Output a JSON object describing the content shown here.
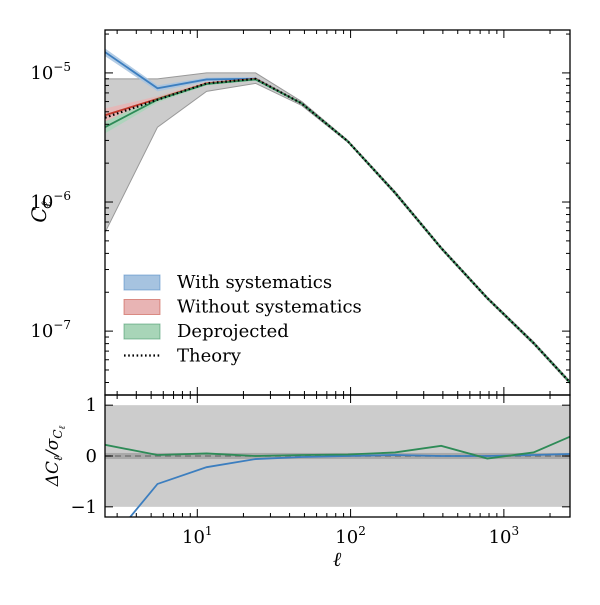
{
  "chart_data": [
    {
      "type": "line",
      "xscale": "log",
      "yscale": "log",
      "xlim": [
        2.5,
        2700
      ],
      "ylim": [
        3.2e-08,
        2.15e-05
      ],
      "xlabel": "ℓ",
      "ylabel": "Cℓ",
      "yticks": [
        {
          "value": 1e-07,
          "base": "10",
          "exp": "−7"
        },
        {
          "value": 1e-06,
          "base": "10",
          "exp": "−6"
        },
        {
          "value": 1e-05,
          "base": "10",
          "exp": "−5"
        }
      ],
      "legend_position": "lower-left",
      "x": [
        2.5,
        5.5,
        11.5,
        24,
        48,
        96,
        195,
        390,
        780,
        1560,
        2700
      ],
      "series": [
        {
          "name": "With systematics",
          "color": "#3c7ebf",
          "band_color": "#a6c3e0",
          "values": [
            1.45e-05,
            7.6e-06,
            8.9e-06,
            9e-06,
            5.8e-06,
            2.95e-06,
            1.18e-06,
            4.4e-07,
            1.8e-07,
            8.1e-08,
            4e-08
          ],
          "lower": [
            1.35e-05,
            7.2e-06,
            8.6e-06,
            8.7e-06,
            5.7e-06,
            2.9e-06,
            1.16e-06,
            4.3e-07,
            1.77e-07,
            7.9e-08,
            3.9e-08
          ],
          "upper": [
            1.55e-05,
            8e-06,
            9.2e-06,
            9.3e-06,
            5.9e-06,
            3e-06,
            1.2e-06,
            4.5e-07,
            1.83e-07,
            8.3e-08,
            4.1e-08
          ]
        },
        {
          "name": "Without systematics",
          "color": "#c0392b",
          "band_color": "#e8b4b4",
          "values": [
            4.7e-06,
            6.3e-06,
            8.3e-06,
            9e-06,
            5.8e-06,
            2.95e-06,
            1.18e-06,
            4.4e-07,
            1.8e-07,
            8.1e-08,
            4e-08
          ],
          "lower": [
            4.2e-06,
            6e-06,
            8.1e-06,
            8.8e-06,
            5.7e-06,
            2.9e-06,
            1.16e-06,
            4.3e-07,
            1.77e-07,
            7.9e-08,
            3.9e-08
          ],
          "upper": [
            5.3e-06,
            6.6e-06,
            8.5e-06,
            9.2e-06,
            5.9e-06,
            3e-06,
            1.2e-06,
            4.5e-07,
            1.83e-07,
            8.3e-08,
            4.1e-08
          ]
        },
        {
          "name": "Deprojected",
          "color": "#2e8b57",
          "band_color": "#a8d5b8",
          "values": [
            3.8e-06,
            6.2e-06,
            8.2e-06,
            8.9e-06,
            5.8e-06,
            2.95e-06,
            1.18e-06,
            4.4e-07,
            1.8e-07,
            8.1e-08,
            4e-08
          ],
          "lower": [
            3.4e-06,
            5.9e-06,
            8e-06,
            8.7e-06,
            5.7e-06,
            2.9e-06,
            1.16e-06,
            4.3e-07,
            1.77e-07,
            7.9e-08,
            3.9e-08
          ],
          "upper": [
            4.2e-06,
            6.5e-06,
            8.4e-06,
            9.1e-06,
            5.9e-06,
            3e-06,
            1.2e-06,
            4.5e-07,
            1.83e-07,
            8.3e-08,
            4.1e-08
          ]
        },
        {
          "name": "Theory",
          "color": "#000000",
          "dash": "dotted",
          "values": [
            4.5e-06,
            6.2e-06,
            8.3e-06,
            9e-06,
            5.8e-06,
            2.95e-06,
            1.18e-06,
            4.4e-07,
            1.8e-07,
            8.1e-08,
            4e-08
          ]
        }
      ],
      "error_band": {
        "color": "#cccccc",
        "lower": [
          5.8e-07,
          3.8e-06,
          7.2e-06,
          8.3e-06,
          5.6e-06,
          2.9e-06,
          1.15e-06,
          4.3e-07,
          1.76e-07,
          7.9e-08,
          3.9e-08
        ],
        "upper": [
          9e-06,
          9e-06,
          1e-05,
          1e-05,
          6e-06,
          3e-06,
          1.21e-06,
          4.5e-07,
          1.84e-07,
          8.3e-08,
          4.1e-08
        ]
      }
    },
    {
      "type": "line",
      "xscale": "log",
      "xlim": [
        2.5,
        2700
      ],
      "ylim": [
        -1.2,
        1.2
      ],
      "xlabel": "ℓ",
      "ylabel": "ΔCℓ/σCℓ",
      "xticks": [
        {
          "value": 10,
          "base": "10",
          "exp": "1"
        },
        {
          "value": 100,
          "base": "10",
          "exp": "2"
        },
        {
          "value": 1000,
          "base": "10",
          "exp": "3"
        }
      ],
      "yticks": [
        {
          "value": -1,
          "label": "−1"
        },
        {
          "value": 0,
          "label": "0"
        },
        {
          "value": 1,
          "label": "1"
        }
      ],
      "x": [
        2.5,
        5.5,
        11.5,
        24,
        48,
        96,
        195,
        390,
        780,
        1560,
        2700
      ],
      "bands": [
        {
          "lower": -1.0,
          "upper": 1.0,
          "color": "#cccccc"
        },
        {
          "lower": -0.06,
          "upper": 0.06,
          "color": "#a9a9a9"
        }
      ],
      "reference_line": {
        "value": 0,
        "color": "#777777",
        "dash": "dashed"
      },
      "series": [
        {
          "name": "With systematics",
          "color": "#3c7ebf",
          "values": [
            -1.8,
            -0.55,
            -0.22,
            -0.06,
            -0.02,
            0.0,
            0.02,
            0.0,
            0.0,
            0.02,
            0.04
          ]
        },
        {
          "name": "Deprojected",
          "color": "#2e8b57",
          "values": [
            0.22,
            0.02,
            0.05,
            0.0,
            0.02,
            0.03,
            0.07,
            0.2,
            -0.05,
            0.07,
            0.38
          ]
        }
      ]
    }
  ]
}
